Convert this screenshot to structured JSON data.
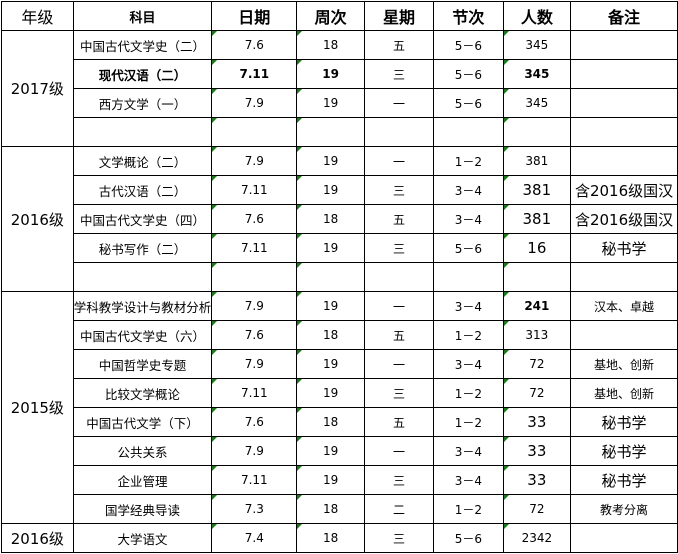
{
  "headers": [
    "年级",
    "科目",
    "日期",
    "周次",
    "星期",
    "节次",
    "人数",
    "备注"
  ],
  "groups": [
    {
      "year": "2017级",
      "rows": [
        {
          "subject": "中国古代文学史（二）",
          "date": "7.6",
          "week": "18",
          "weekday": "五",
          "period": "5－6",
          "count": "345",
          "note": ""
        },
        {
          "subject": "现代汉语（二）",
          "date": "7.11",
          "week": "19",
          "weekday": "三",
          "period": "5－6",
          "count": "345",
          "note": ""
        },
        {
          "subject": "西方文学（一）",
          "date": "7.9",
          "week": "19",
          "weekday": "一",
          "period": "5－6",
          "count": "345",
          "note": ""
        }
      ]
    },
    {
      "year": "2016级",
      "rows": [
        {
          "subject": "文学概论（二）",
          "date": "7.9",
          "week": "19",
          "weekday": "一",
          "period": "1－2",
          "count": "381",
          "note": ""
        },
        {
          "subject": "古代汉语（二）",
          "date": "7.11",
          "week": "19",
          "weekday": "三",
          "period": "3－4",
          "count": "381",
          "note": "含2016级国汉"
        },
        {
          "subject": "中国古代文学史（四）",
          "date": "7.6",
          "week": "18",
          "weekday": "五",
          "period": "3－4",
          "count": "381",
          "note": "含2016级国汉"
        },
        {
          "subject": "秘书写作（二）",
          "date": "7.11",
          "week": "19",
          "weekday": "三",
          "period": "5－6",
          "count": "16",
          "note": "秘书学"
        }
      ]
    },
    {
      "year": "2015级",
      "rows": [
        {
          "subject": "学科教学设计与教材分析",
          "date": "7.9",
          "week": "19",
          "weekday": "一",
          "period": "3－4",
          "count": "241",
          "note": "汉本、卓越"
        },
        {
          "subject": "中国古代文学史（六）",
          "date": "7.6",
          "week": "18",
          "weekday": "五",
          "period": "1－2",
          "count": "313",
          "note": ""
        },
        {
          "subject": "中国哲学史专题",
          "date": "7.9",
          "week": "19",
          "weekday": "一",
          "period": "3－4",
          "count": "72",
          "note": "基地、创新"
        },
        {
          "subject": "比较文学概论",
          "date": "7.11",
          "week": "19",
          "weekday": "三",
          "period": "1－2",
          "count": "72",
          "note": "基地、创新"
        },
        {
          "subject": "中国古代文学（下）",
          "date": "7.6",
          "week": "18",
          "weekday": "五",
          "period": "1－2",
          "count": "33",
          "note": "秘书学"
        },
        {
          "subject": "公共关系",
          "date": "7.9",
          "week": "19",
          "weekday": "一",
          "period": "3－4",
          "count": "33",
          "note": "秘书学"
        },
        {
          "subject": "企业管理",
          "date": "7.11",
          "week": "19",
          "weekday": "三",
          "period": "3－4",
          "count": "33",
          "note": "秘书学"
        },
        {
          "subject": "国学经典导读",
          "date": "7.3",
          "week": "18",
          "weekday": "二",
          "period": "1－2",
          "count": "72",
          "note": "教考分离"
        }
      ]
    },
    {
      "year": "2016级",
      "rows": [
        {
          "subject": "大学语文",
          "date": "7.4",
          "week": "18",
          "weekday": "三",
          "period": "5－6",
          "count": "2342",
          "note": ""
        }
      ]
    }
  ],
  "marker_color": "#1a7a1a"
}
